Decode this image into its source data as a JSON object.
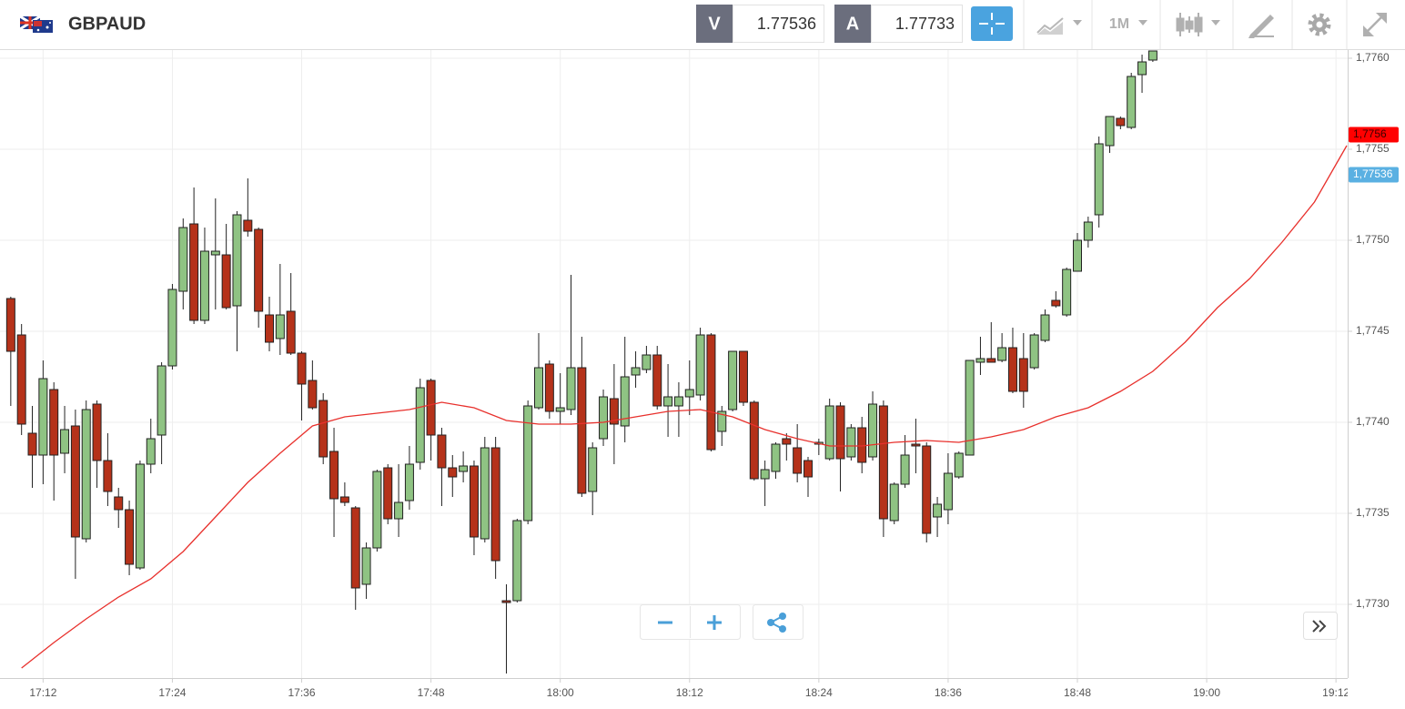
{
  "header": {
    "symbol": "GBPAUD",
    "bid_label": "V",
    "bid": "1.77536",
    "ask_label": "A",
    "ask": "1.77733",
    "timeframe": "1M"
  },
  "chart_data": {
    "type": "candlestick",
    "xlim": [
      "17:08",
      "19:13"
    ],
    "xticks": [
      "17:12",
      "17:24",
      "17:36",
      "17:48",
      "18:00",
      "18:12",
      "18:24",
      "18:36",
      "18:48",
      "19:00",
      "19:12"
    ],
    "ylim": [
      1.772595,
      1.776045
    ],
    "yticks": [
      {
        "value": 1.773,
        "label": "1,7730"
      },
      {
        "value": 1.7735,
        "label": "1,7735"
      },
      {
        "value": 1.774,
        "label": "1,7740"
      },
      {
        "value": 1.7745,
        "label": "1,7745"
      },
      {
        "value": 1.775,
        "label": "1,7750"
      },
      {
        "value": 1.7755,
        "label": "1,7755"
      },
      {
        "value": 1.776,
        "label": "1,7760"
      }
    ],
    "grid": true,
    "price_markers": [
      {
        "value": 1.77558,
        "label": "1,7756",
        "color": "#ff0000",
        "text_color": "#3a0000"
      },
      {
        "value": 1.77536,
        "label": "1,77536",
        "color": "#5ab0e2",
        "text_color": "#ffffff"
      }
    ],
    "series": [
      {
        "type": "candlestick",
        "up_color": "#8fc383",
        "down_color": "#b5321a",
        "x": [
          "17:09",
          "17:10",
          "17:11",
          "17:12",
          "17:13",
          "17:14",
          "17:15",
          "17:16",
          "17:17",
          "17:18",
          "17:19",
          "17:20",
          "17:21",
          "17:22",
          "17:23",
          "17:24",
          "17:25",
          "17:26",
          "17:27",
          "17:28",
          "17:29",
          "17:30",
          "17:31",
          "17:32",
          "17:33",
          "17:34",
          "17:35",
          "17:36",
          "17:37",
          "17:38",
          "17:39",
          "17:40",
          "17:41",
          "17:42",
          "17:43",
          "17:44",
          "17:45",
          "17:46",
          "17:47",
          "17:48",
          "17:49",
          "17:50",
          "17:51",
          "17:52",
          "17:53",
          "17:54",
          "17:55",
          "17:56",
          "17:57",
          "17:58",
          "17:59",
          "18:00",
          "18:01",
          "18:02",
          "18:03",
          "18:04",
          "18:05",
          "18:06",
          "18:07",
          "18:08",
          "18:09",
          "18:10",
          "18:11",
          "18:12",
          "18:13",
          "18:14",
          "18:15",
          "18:16",
          "18:17",
          "18:18",
          "18:19",
          "18:20",
          "18:21",
          "18:22",
          "18:23",
          "18:24",
          "18:25",
          "18:26",
          "18:27",
          "18:28",
          "18:29",
          "18:30",
          "18:31",
          "18:32",
          "18:33",
          "18:34",
          "18:35",
          "18:36",
          "18:37",
          "18:38",
          "18:39",
          "18:40",
          "18:41",
          "18:42",
          "18:43",
          "18:44",
          "18:45",
          "18:46",
          "18:47",
          "18:48",
          "18:49",
          "18:50",
          "18:51",
          "18:52",
          "18:53",
          "18:54",
          "18:55"
        ],
        "open": [
          1.77468,
          1.77448,
          1.77394,
          1.77382,
          1.77418,
          1.77383,
          1.77398,
          1.77336,
          1.7741,
          1.77379,
          1.77359,
          1.77352,
          1.7732,
          1.77377,
          1.77393,
          1.77431,
          1.77472,
          1.77509,
          1.77456,
          1.77492,
          1.77492,
          1.77464,
          1.77511,
          1.77506,
          1.77459,
          1.77446,
          1.77461,
          1.77438,
          1.77423,
          1.77412,
          1.77384,
          1.77359,
          1.77353,
          1.77311,
          1.77331,
          1.77375,
          1.77347,
          1.77357,
          1.77378,
          1.77423,
          1.77393,
          1.77375,
          1.77373,
          1.77376,
          1.77336,
          1.77386,
          1.77302,
          1.77302,
          1.77346,
          1.77408,
          1.77432,
          1.77406,
          1.77407,
          1.7743,
          1.77362,
          1.77391,
          1.77413,
          1.77398,
          1.77426,
          1.77429,
          1.77437,
          1.77409,
          1.77409,
          1.77414,
          1.77415,
          1.77448,
          1.77395,
          1.77407,
          1.77439,
          1.77411,
          1.77369,
          1.77373,
          1.77391,
          1.77386,
          1.77379,
          1.77388,
          1.7738,
          1.77409,
          1.77381,
          1.77397,
          1.77381,
          1.77409,
          1.77346,
          1.77366,
          1.77388,
          1.77387,
          1.77348,
          1.77352,
          1.7737,
          1.77382,
          1.77433,
          1.77435,
          1.77434,
          1.77441,
          1.77435,
          1.7743,
          1.77445,
          1.77467,
          1.77459,
          1.77483,
          1.775,
          1.77514,
          1.77552,
          1.77567,
          1.77562,
          1.77591,
          1.77599
        ],
        "high": [
          1.77469,
          1.77454,
          1.77409,
          1.77434,
          1.77422,
          1.77409,
          1.77407,
          1.77412,
          1.77412,
          1.77394,
          1.77364,
          1.77357,
          1.77379,
          1.77402,
          1.77433,
          1.77476,
          1.77512,
          1.77529,
          1.77507,
          1.77523,
          1.77509,
          1.77516,
          1.77534,
          1.77507,
          1.77469,
          1.77487,
          1.77482,
          1.77439,
          1.77434,
          1.77416,
          1.77397,
          1.77367,
          1.77354,
          1.77334,
          1.77374,
          1.77377,
          1.77377,
          1.77387,
          1.77424,
          1.77424,
          1.77397,
          1.77382,
          1.77384,
          1.77379,
          1.77392,
          1.77392,
          1.77311,
          1.77347,
          1.77412,
          1.77449,
          1.77434,
          1.77427,
          1.77481,
          1.77447,
          1.77389,
          1.77418,
          1.77432,
          1.77447,
          1.77439,
          1.77442,
          1.77442,
          1.77432,
          1.77422,
          1.77434,
          1.77452,
          1.77449,
          1.77409,
          1.77439,
          1.77439,
          1.77412,
          1.77379,
          1.77389,
          1.77394,
          1.77399,
          1.77381,
          1.77391,
          1.77413,
          1.77411,
          1.77399,
          1.77403,
          1.77417,
          1.77412,
          1.77367,
          1.77393,
          1.77402,
          1.77389,
          1.77359,
          1.77383,
          1.77384,
          1.77434,
          1.77447,
          1.77455,
          1.77449,
          1.77452,
          1.77449,
          1.77449,
          1.77462,
          1.77472,
          1.77485,
          1.77504,
          1.77513,
          1.77557,
          1.77568,
          1.77568,
          1.77592,
          1.77602,
          1.77604
        ],
        "low": [
          1.77409,
          1.77393,
          1.77364,
          1.77366,
          1.77357,
          1.77372,
          1.77314,
          1.77334,
          1.77364,
          1.77354,
          1.77342,
          1.77316,
          1.77319,
          1.77372,
          1.77377,
          1.77429,
          1.77462,
          1.77454,
          1.77454,
          1.77462,
          1.77462,
          1.77439,
          1.77502,
          1.77452,
          1.77439,
          1.77437,
          1.77437,
          1.77401,
          1.77407,
          1.77377,
          1.77337,
          1.77354,
          1.77297,
          1.77303,
          1.77329,
          1.77344,
          1.77337,
          1.77352,
          1.77374,
          1.77379,
          1.77354,
          1.77359,
          1.77367,
          1.77327,
          1.77334,
          1.77314,
          1.77262,
          1.77301,
          1.77344,
          1.77407,
          1.77402,
          1.77399,
          1.77404,
          1.77359,
          1.77349,
          1.77387,
          1.77377,
          1.77389,
          1.77419,
          1.77427,
          1.77407,
          1.77392,
          1.77392,
          1.77404,
          1.77412,
          1.77384,
          1.77387,
          1.77406,
          1.77409,
          1.77368,
          1.77354,
          1.77369,
          1.77379,
          1.77367,
          1.77359,
          1.77382,
          1.77379,
          1.77362,
          1.77379,
          1.77372,
          1.77379,
          1.77337,
          1.77344,
          1.77364,
          1.77372,
          1.77334,
          1.77337,
          1.77344,
          1.77369,
          1.77382,
          1.77426,
          1.77433,
          1.77433,
          1.77416,
          1.77408,
          1.77429,
          1.77444,
          1.77463,
          1.77458,
          1.77483,
          1.77496,
          1.77507,
          1.77548,
          1.77561,
          1.77561,
          1.77581,
          1.77598
        ],
        "close": [
          1.77439,
          1.77399,
          1.77382,
          1.77424,
          1.77382,
          1.77396,
          1.77337,
          1.77407,
          1.77379,
          1.77362,
          1.77352,
          1.77322,
          1.77377,
          1.77391,
          1.77431,
          1.77473,
          1.77507,
          1.77456,
          1.77494,
          1.77494,
          1.77463,
          1.77514,
          1.77505,
          1.77461,
          1.77444,
          1.77459,
          1.77438,
          1.77421,
          1.77408,
          1.77381,
          1.77358,
          1.77356,
          1.77309,
          1.77331,
          1.77373,
          1.77347,
          1.77356,
          1.77377,
          1.77419,
          1.77393,
          1.77375,
          1.7737,
          1.77376,
          1.77337,
          1.77386,
          1.77324,
          1.77301,
          1.77346,
          1.77409,
          1.7743,
          1.77406,
          1.77408,
          1.7743,
          1.77361,
          1.77386,
          1.77414,
          1.77399,
          1.77425,
          1.7743,
          1.77437,
          1.77409,
          1.77414,
          1.77414,
          1.77418,
          1.77448,
          1.77385,
          1.77406,
          1.77439,
          1.77411,
          1.77369,
          1.77374,
          1.77388,
          1.77388,
          1.77372,
          1.7737,
          1.77389,
          1.77409,
          1.7738,
          1.77397,
          1.77378,
          1.7741,
          1.77347,
          1.77366,
          1.77382,
          1.77387,
          1.77339,
          1.77355,
          1.77372,
          1.77383,
          1.77434,
          1.77435,
          1.77433,
          1.77441,
          1.77417,
          1.77417,
          1.77448,
          1.77459,
          1.77464,
          1.77484,
          1.775,
          1.7751,
          1.77553,
          1.77568,
          1.77563,
          1.7759,
          1.77598,
          1.77604
        ]
      },
      {
        "type": "line",
        "color": "#e8302c",
        "x": [
          "17:10",
          "17:13",
          "17:16",
          "17:19",
          "17:22",
          "17:25",
          "17:28",
          "17:31",
          "17:34",
          "17:37",
          "17:40",
          "17:43",
          "17:46",
          "17:49",
          "17:52",
          "17:55",
          "17:58",
          "18:01",
          "18:04",
          "18:07",
          "18:10",
          "18:13",
          "18:16",
          "18:19",
          "18:22",
          "18:25",
          "18:28",
          "18:31",
          "18:34",
          "18:37",
          "18:40",
          "18:43",
          "18:46",
          "18:49",
          "18:52",
          "18:55",
          "18:58",
          "19:01",
          "19:04",
          "19:07",
          "19:10",
          "19:13"
        ],
        "values": [
          1.77265,
          1.77279,
          1.77292,
          1.77304,
          1.77314,
          1.77329,
          1.77348,
          1.77367,
          1.77383,
          1.77398,
          1.77403,
          1.77405,
          1.77407,
          1.77411,
          1.77408,
          1.77401,
          1.77399,
          1.77399,
          1.774,
          1.77403,
          1.77406,
          1.77407,
          1.77403,
          1.77396,
          1.77391,
          1.77387,
          1.77387,
          1.77389,
          1.7739,
          1.77389,
          1.77392,
          1.77396,
          1.77403,
          1.77408,
          1.77417,
          1.77428,
          1.77444,
          1.77463,
          1.77479,
          1.77499,
          1.77521,
          1.77552
        ]
      }
    ]
  }
}
